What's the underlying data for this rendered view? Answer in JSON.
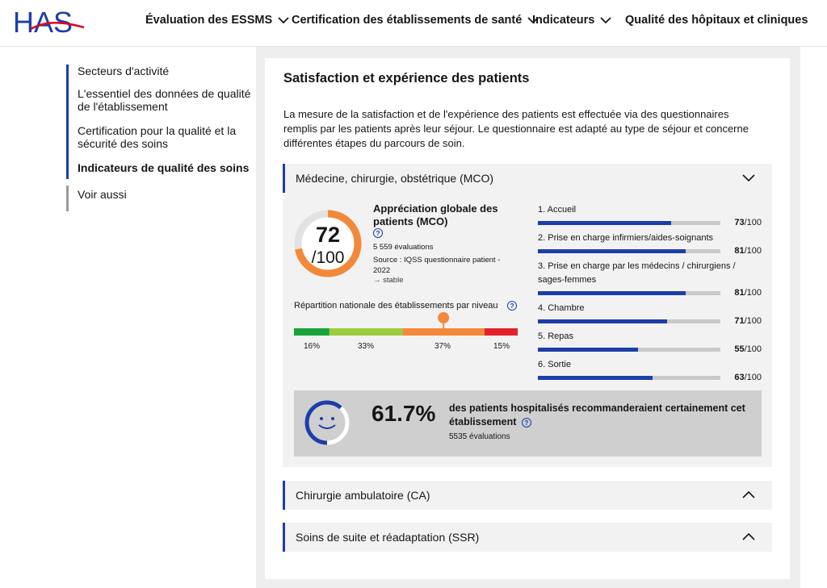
{
  "header": {
    "logo_text": "HAS",
    "nav": [
      {
        "label": "Évaluation des ESSMS"
      },
      {
        "label": "Certification des établissements de santé"
      },
      {
        "label": "Indicateurs"
      },
      {
        "label": "Qualité des hôpitaux et cliniques"
      }
    ]
  },
  "sidebar": {
    "items": [
      {
        "label": "Secteurs d'activité"
      },
      {
        "label": "L'essentiel des données de qualité de l'établissement"
      },
      {
        "label": "Certification pour la qualité et la sécurité des soins"
      },
      {
        "label": "Indicateurs de qualité des soins"
      },
      {
        "label": "Voir aussi"
      }
    ]
  },
  "main": {
    "title": "Satisfaction et expérience des patients",
    "intro": "La mesure de la satisfaction et de l'expérience des patients est effectuée via des questionnaires remplis par les patients après leur séjour. Le questionnaire est adapté au type de séjour et concerne différentes étapes du parcours de soin.",
    "accordions": [
      {
        "label": "Médecine, chirurgie, obstétrique (MCO)"
      },
      {
        "label": "Chirurgie ambulatoire (CA)"
      },
      {
        "label": "Soins de suite et réadaptation (SSR)"
      }
    ],
    "mco": {
      "score": "72",
      "score_max": "/100",
      "score_value": 72,
      "global_title": "Appréciation globale des patients (MCO)",
      "help": "?",
      "evaluations": "5 559 évaluations",
      "source": "Source : IQSS questionnaire patient - 2022",
      "trend": "→ stable",
      "repartition_title": "Répartition nationale des établissements par niveau",
      "distribution": [
        {
          "label": "16%",
          "value": 16,
          "color": "#18a33b"
        },
        {
          "label": "33%",
          "value": 33,
          "color": "#9ccc3c"
        },
        {
          "label": "37%",
          "value": 37,
          "color": "#f2893a"
        },
        {
          "label": "15%",
          "value": 15,
          "color": "#e3232c"
        }
      ],
      "criteria": [
        {
          "label": "1. Accueil",
          "score": "73",
          "max": "/100",
          "value": 73
        },
        {
          "label": "2. Prise en charge infirmiers/aides-soignants",
          "score": "81",
          "max": "/100",
          "value": 81
        },
        {
          "label": "3. Prise en charge par les médecins / chirurgiens / sages-femmes",
          "score": "81",
          "max": "/100",
          "value": 81
        },
        {
          "label": "4. Chambre",
          "score": "71",
          "max": "/100",
          "value": 71
        },
        {
          "label": "5. Repas",
          "score": "55",
          "max": "/100",
          "value": 55
        },
        {
          "label": "6. Sortie",
          "score": "63",
          "max": "/100",
          "value": 63
        }
      ],
      "recommend": {
        "pct": "61.7%",
        "pct_value": 61.7,
        "text": "des patients hospitalisés recommanderaient certainement cet établissement",
        "evaluations": "5535 évaluations"
      }
    }
  },
  "colors": {
    "accent": "#1d3ea8",
    "orange": "#f2893a",
    "logo_red": "#e2001a"
  }
}
